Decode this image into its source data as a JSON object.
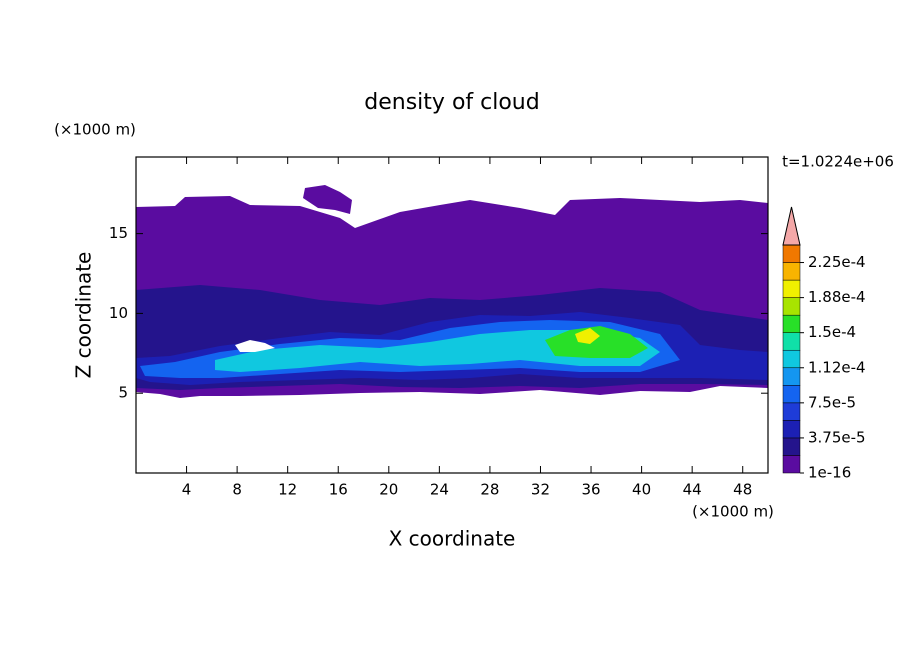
{
  "chart_data": {
    "type": "contour",
    "title": "density of cloud",
    "x_label": "X coordinate",
    "y_label": "Z coordinate",
    "x_unit": "(×1000 m)",
    "y_unit": "(×1000 m)",
    "time_label": "t=1.0224e+06",
    "xlim": [
      0,
      50
    ],
    "ylim": [
      0,
      19.8
    ],
    "xticks": [
      4,
      8,
      12,
      16,
      20,
      24,
      28,
      32,
      36,
      40,
      44,
      48
    ],
    "yticks": [
      5,
      10,
      15
    ],
    "colorbar": {
      "clim": [
        1e-16,
        0.00024375
      ],
      "colors": [
        "#5a0ca0",
        "#24148c",
        "#1c20b4",
        "#1e3cd8",
        "#1464f0",
        "#1496f0",
        "#10c8e0",
        "#10e0a8",
        "#28e028",
        "#a8e400",
        "#f0f000",
        "#f8b400",
        "#f07800"
      ],
      "extend_color": "#f4a8a8",
      "ticks": [
        1e-16,
        {
          "value": 3.75e-05,
          "label": "3.75e-5"
        },
        {
          "value": 7.5e-05,
          "label": "7.5e-5"
        },
        {
          "value": 0.0001125,
          "label": "1.12e-4"
        },
        {
          "value": 0.00015,
          "label": "1.5e-4"
        },
        {
          "value": 0.0001875,
          "label": "1.88e-4"
        },
        {
          "value": 0.000225,
          "label": "2.25e-4"
        }
      ]
    }
  }
}
